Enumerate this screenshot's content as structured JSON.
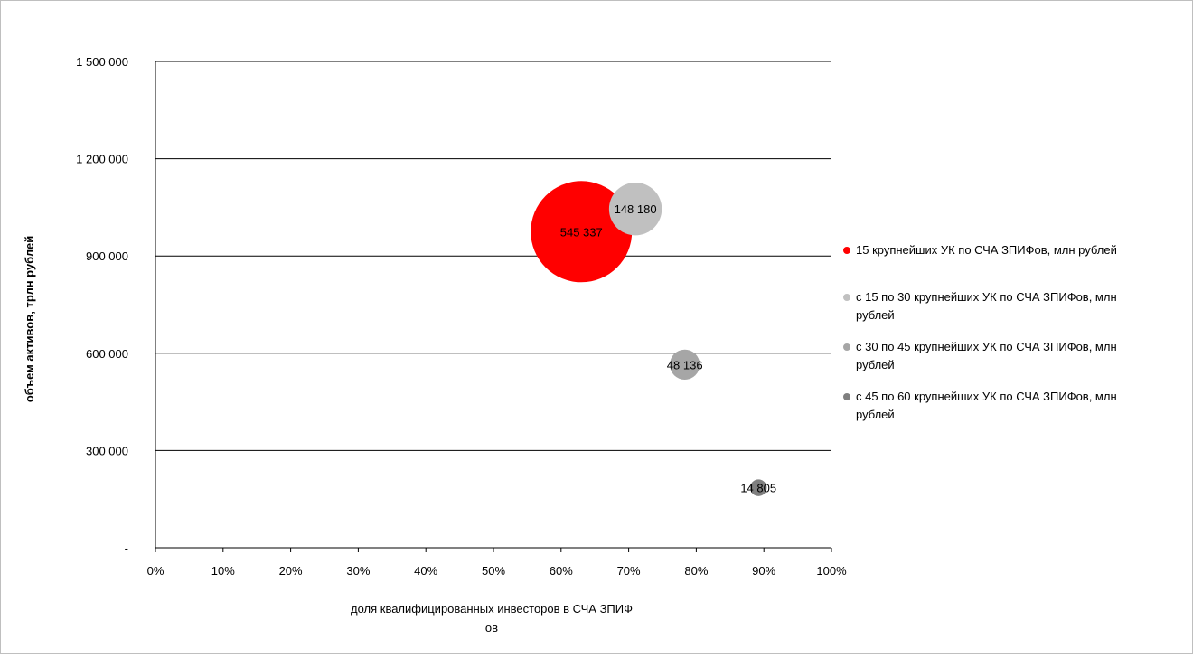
{
  "chart_data": {
    "type": "bubble",
    "xlabel_lines": [
      "доля квалифицированных инвесторов в СЧА ЗПИФ",
      "ов"
    ],
    "ylabel": "объем активов, трлн рублей",
    "x_ticks": [
      "0%",
      "10%",
      "20%",
      "30%",
      "40%",
      "50%",
      "60%",
      "70%",
      "80%",
      "90%",
      "100%"
    ],
    "y_ticks": [
      "-",
      "300 000",
      "600 000",
      "900 000",
      "1 200 000",
      "1 500 000"
    ],
    "xlim": [
      0,
      1
    ],
    "ylim": [
      0,
      1500000
    ],
    "grid": "horizontal",
    "legend_position": "right",
    "series": [
      {
        "name_lines": [
          "15 крупнейших УК по СЧА ЗПИФов, млн рублей"
        ],
        "color": "#ff0000",
        "x": 0.63,
        "y": 975000,
        "size": 545337,
        "label": "545 337"
      },
      {
        "name_lines": [
          "с 15 по 30 крупнейших УК по СЧА ЗПИФов, млн",
          "рублей"
        ],
        "color": "#c0c0c0",
        "x": 0.71,
        "y": 1045000,
        "size": 148180,
        "label": "148 180"
      },
      {
        "name_lines": [
          "с 30 по 45 крупнейших УК по СЧА ЗПИФов, млн",
          "рублей"
        ],
        "color": "#a6a6a6",
        "x": 0.783,
        "y": 565000,
        "size": 48136,
        "label": "48 136"
      },
      {
        "name_lines": [
          "с 45 по 60 крупнейших УК по СЧА ЗПИФов, млн",
          "рублей"
        ],
        "color": "#7f7f7f",
        "x": 0.892,
        "y": 185000,
        "size": 14805,
        "label": "14 805"
      }
    ]
  }
}
